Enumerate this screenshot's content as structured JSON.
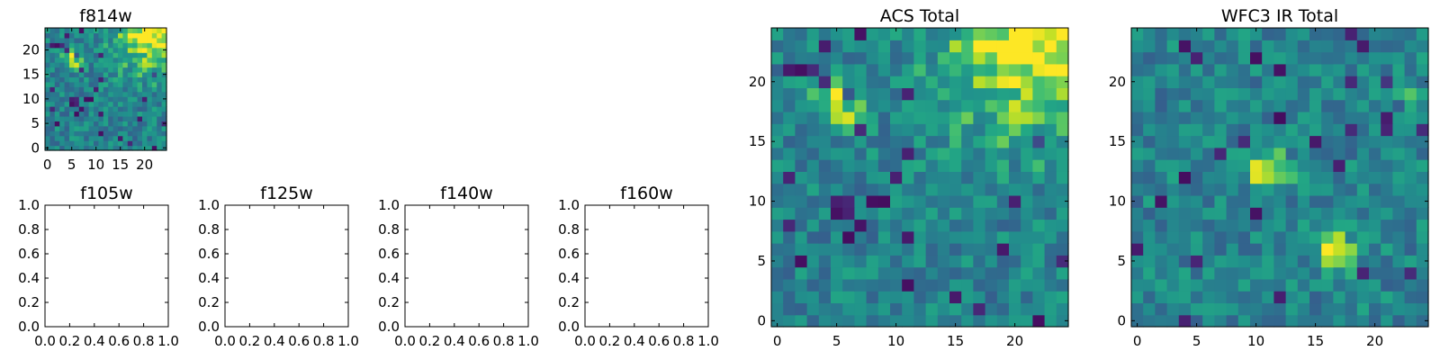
{
  "chart_data": [
    {
      "id": "f814w",
      "type": "heatmap",
      "title": "f814w",
      "size": 25,
      "xlabel": "",
      "ylabel": "",
      "xticks": [
        0,
        5,
        10,
        15,
        20
      ],
      "yticks": [
        0,
        5,
        10,
        15,
        20
      ],
      "xlim": [
        -0.5,
        24.5
      ],
      "ylim": [
        -0.5,
        24.5
      ],
      "colormap": "viridis",
      "seed": 11,
      "hotspots": [
        {
          "x": 23,
          "y": 24,
          "r": 6,
          "a": 0.5
        },
        {
          "x": 5,
          "y": 18,
          "r": 1.5,
          "a": 0.35
        }
      ]
    },
    {
      "id": "f105w",
      "type": "empty",
      "title": "f105w",
      "xticks": [
        0.0,
        0.2,
        0.4,
        0.6,
        0.8,
        1.0
      ],
      "yticks": [
        0.0,
        0.2,
        0.4,
        0.6,
        0.8,
        1.0
      ],
      "xlim": [
        0,
        1
      ],
      "ylim": [
        0,
        1
      ]
    },
    {
      "id": "f125w",
      "type": "empty",
      "title": "f125w",
      "xticks": [
        0.0,
        0.2,
        0.4,
        0.6,
        0.8,
        1.0
      ],
      "yticks": [
        0.0,
        0.2,
        0.4,
        0.6,
        0.8,
        1.0
      ],
      "xlim": [
        0,
        1
      ],
      "ylim": [
        0,
        1
      ]
    },
    {
      "id": "f140w",
      "type": "empty",
      "title": "f140w",
      "xticks": [
        0.0,
        0.2,
        0.4,
        0.6,
        0.8,
        1.0
      ],
      "yticks": [
        0.0,
        0.2,
        0.4,
        0.6,
        0.8,
        1.0
      ],
      "xlim": [
        0,
        1
      ],
      "ylim": [
        0,
        1
      ]
    },
    {
      "id": "f160w",
      "type": "empty",
      "title": "f160w",
      "xticks": [
        0.0,
        0.2,
        0.4,
        0.6,
        0.8,
        1.0
      ],
      "yticks": [
        0.0,
        0.2,
        0.4,
        0.6,
        0.8,
        1.0
      ],
      "xlim": [
        0,
        1
      ],
      "ylim": [
        0,
        1
      ]
    },
    {
      "id": "acs_total",
      "type": "heatmap",
      "title": "ACS Total",
      "size": 25,
      "xticks": [
        0,
        5,
        10,
        15,
        20
      ],
      "yticks": [
        0,
        5,
        10,
        15,
        20
      ],
      "xlim": [
        -0.5,
        24.5
      ],
      "ylim": [
        -0.5,
        24.5
      ],
      "colormap": "viridis",
      "seed": 11,
      "hotspots": [
        {
          "x": 23,
          "y": 24,
          "r": 6,
          "a": 0.5
        },
        {
          "x": 5,
          "y": 18,
          "r": 1.5,
          "a": 0.35
        }
      ]
    },
    {
      "id": "wfc3_ir_total",
      "type": "heatmap",
      "title": "WFC3 IR Total",
      "size": 25,
      "xticks": [
        0,
        5,
        10,
        15,
        20
      ],
      "yticks": [
        0,
        5,
        10,
        15,
        20
      ],
      "xlim": [
        -0.5,
        24.5
      ],
      "ylim": [
        -0.5,
        24.5
      ],
      "colormap": "viridis",
      "seed": 29,
      "hotspots": [
        {
          "x": 11,
          "y": 12.5,
          "r": 1.2,
          "a": 0.5
        },
        {
          "x": 16.5,
          "y": 6,
          "r": 1.2,
          "a": 0.35
        },
        {
          "x": 22,
          "y": 18.5,
          "r": 1,
          "a": 0.3
        }
      ]
    }
  ]
}
